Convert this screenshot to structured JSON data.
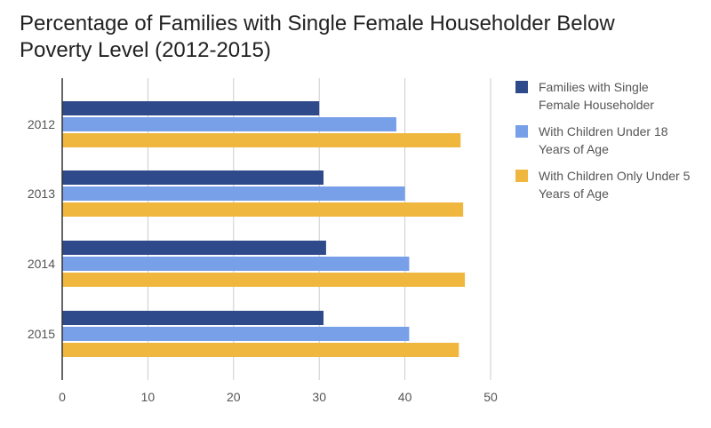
{
  "chart_data": {
    "type": "bar",
    "orientation": "horizontal",
    "title_lines": [
      "Percentage of Families with Single Female Householder Below",
      "Poverty Level (2012-2015)"
    ],
    "categories": [
      "2012",
      "2013",
      "2014",
      "2015"
    ],
    "series": [
      {
        "name": "Families with Single Female Householder",
        "legend_lines": [
          "Families with Single",
          "Female Householder"
        ],
        "color": "#2f4a8a",
        "values": [
          30.0,
          30.5,
          30.8,
          30.5
        ]
      },
      {
        "name": "With Children Under 18 Years of Age",
        "legend_lines": [
          "With Children Under 18",
          "Years of Age"
        ],
        "color": "#77a0e8",
        "values": [
          39.0,
          40.0,
          40.5,
          40.5
        ]
      },
      {
        "name": "With Children Only Under 5 Years of Age",
        "legend_lines": [
          "With Children Only Under 5",
          "Years of Age"
        ],
        "color": "#f0b73e",
        "values": [
          46.5,
          46.8,
          47.0,
          46.3
        ]
      }
    ],
    "xticks": [
      "0",
      "10",
      "20",
      "30",
      "40",
      "50"
    ],
    "xlim": [
      0,
      50
    ],
    "grid": true,
    "legend_position": "right"
  }
}
